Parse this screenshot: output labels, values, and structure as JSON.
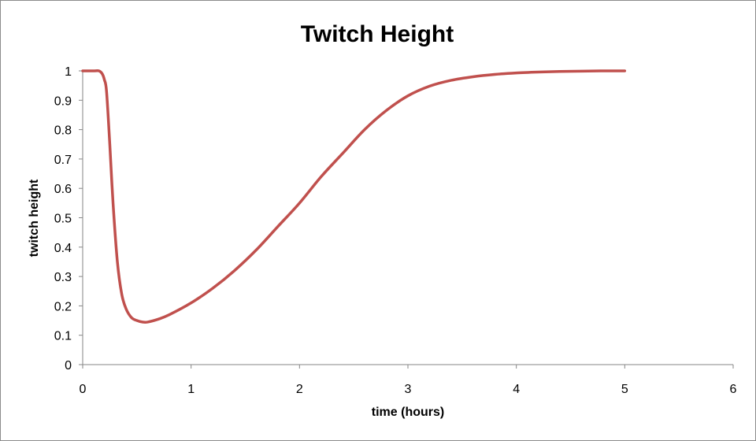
{
  "chart_data": {
    "type": "line",
    "title": "Twitch Height",
    "xlabel": "time (hours)",
    "ylabel": "twitch height",
    "xlim": [
      0,
      6
    ],
    "ylim": [
      0,
      1
    ],
    "x_ticks": [
      0,
      1,
      2,
      3,
      4,
      5,
      6
    ],
    "y_ticks": [
      0,
      0.1,
      0.2,
      0.3,
      0.4,
      0.5,
      0.6,
      0.7,
      0.8,
      0.9,
      1
    ],
    "x_tick_labels": [
      "0",
      "1",
      "2",
      "3",
      "4",
      "5",
      "6"
    ],
    "y_tick_labels": [
      "0",
      "0.1",
      "0.2",
      "0.3",
      "0.4",
      "0.5",
      "0.6",
      "0.7",
      "0.8",
      "0.9",
      "1"
    ],
    "grid": false,
    "legend": "none",
    "series": [
      {
        "color": "#c0504d",
        "x": [
          0,
          0.1,
          0.15,
          0.18,
          0.2,
          0.22,
          0.25,
          0.28,
          0.32,
          0.36,
          0.4,
          0.45,
          0.5,
          0.55,
          0.6,
          0.7,
          0.8,
          1.0,
          1.2,
          1.4,
          1.6,
          1.8,
          2.0,
          2.2,
          2.4,
          2.6,
          2.8,
          3.0,
          3.2,
          3.4,
          3.6,
          3.8,
          4.0,
          4.2,
          4.4,
          4.6,
          4.8,
          5.0
        ],
        "y": [
          1,
          1,
          1,
          0.99,
          0.97,
          0.93,
          0.75,
          0.55,
          0.35,
          0.24,
          0.19,
          0.16,
          0.15,
          0.145,
          0.145,
          0.155,
          0.17,
          0.21,
          0.26,
          0.32,
          0.39,
          0.47,
          0.55,
          0.64,
          0.72,
          0.8,
          0.865,
          0.915,
          0.948,
          0.968,
          0.98,
          0.988,
          0.993,
          0.996,
          0.998,
          0.999,
          1.0,
          1.0
        ]
      }
    ]
  }
}
